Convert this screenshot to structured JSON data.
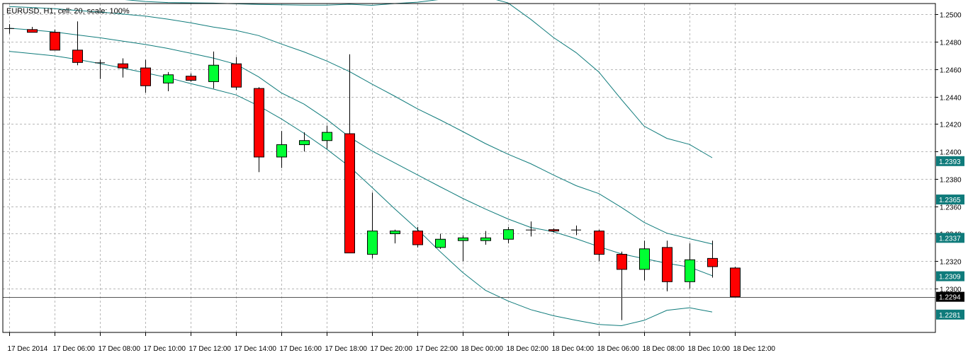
{
  "header": {
    "info": "EURUSD, H1, cell: 20, scale: 100%"
  },
  "colors": {
    "bull": "#00ff33",
    "bear": "#ff0000",
    "wick": "#000000",
    "band": "#0f7b7b",
    "grid": "#b8b8b8",
    "price_tag_bg": "#0f7b7b",
    "current_tag_bg": "#000000"
  },
  "chart_data": {
    "type": "candlestick",
    "symbol": "EURUSD",
    "timeframe": "H1",
    "ylim": [
      1.2268,
      1.2508
    ],
    "y_ticks": [
      "1.2500",
      "1.2480",
      "1.2460",
      "1.2440",
      "1.2420",
      "1.2400",
      "1.2380",
      "1.2360",
      "1.2340",
      "1.2320",
      "1.2300"
    ],
    "x_tick_labels": [
      "17 Dec 2014",
      "17 Dec 06:00",
      "17 Dec 08:00",
      "17 Dec 10:00",
      "17 Dec 12:00",
      "17 Dec 14:00",
      "17 Dec 16:00",
      "17 Dec 18:00",
      "17 Dec 20:00",
      "17 Dec 22:00",
      "18 Dec 00:00",
      "18 Dec 02:00",
      "18 Dec 04:00",
      "18 Dec 06:00",
      "18 Dec 08:00",
      "18 Dec 10:00",
      "18 Dec 12:00"
    ],
    "candles": [
      {
        "o": 1.249,
        "h": 1.2493,
        "l": 1.2486,
        "c": 1.249
      },
      {
        "o": 1.2489,
        "h": 1.2491,
        "l": 1.2487,
        "c": 1.2487
      },
      {
        "o": 1.2487,
        "h": 1.2489,
        "l": 1.2474,
        "c": 1.2474
      },
      {
        "o": 1.2474,
        "h": 1.2495,
        "l": 1.2463,
        "c": 1.2465
      },
      {
        "o": 1.2465,
        "h": 1.2467,
        "l": 1.2453,
        "c": 1.2465
      },
      {
        "o": 1.2464,
        "h": 1.2468,
        "l": 1.2454,
        "c": 1.2461
      },
      {
        "o": 1.2461,
        "h": 1.2467,
        "l": 1.2443,
        "c": 1.2448
      },
      {
        "o": 1.245,
        "h": 1.2458,
        "l": 1.2444,
        "c": 1.2456
      },
      {
        "o": 1.2455,
        "h": 1.2457,
        "l": 1.2451,
        "c": 1.2452
      },
      {
        "o": 1.2451,
        "h": 1.2473,
        "l": 1.2446,
        "c": 1.2463
      },
      {
        "o": 1.2464,
        "h": 1.2469,
        "l": 1.2445,
        "c": 1.2447
      },
      {
        "o": 1.2446,
        "h": 1.2447,
        "l": 1.2385,
        "c": 1.2396
      },
      {
        "o": 1.2396,
        "h": 1.2415,
        "l": 1.2388,
        "c": 1.2405
      },
      {
        "o": 1.2405,
        "h": 1.2414,
        "l": 1.24,
        "c": 1.2408
      },
      {
        "o": 1.2408,
        "h": 1.2419,
        "l": 1.2402,
        "c": 1.2414
      },
      {
        "o": 1.2413,
        "h": 1.2471,
        "l": 1.2326,
        "c": 1.2326
      },
      {
        "o": 1.2325,
        "h": 1.237,
        "l": 1.2322,
        "c": 1.2342
      },
      {
        "o": 1.234,
        "h": 1.2343,
        "l": 1.2333,
        "c": 1.2342
      },
      {
        "o": 1.2342,
        "h": 1.2345,
        "l": 1.233,
        "c": 1.2332
      },
      {
        "o": 1.233,
        "h": 1.234,
        "l": 1.2329,
        "c": 1.2336
      },
      {
        "o": 1.2335,
        "h": 1.2339,
        "l": 1.232,
        "c": 1.2337
      },
      {
        "o": 1.2335,
        "h": 1.2342,
        "l": 1.2332,
        "c": 1.2337
      },
      {
        "o": 1.2336,
        "h": 1.2345,
        "l": 1.2333,
        "c": 1.2343
      },
      {
        "o": 1.2343,
        "h": 1.2349,
        "l": 1.2338,
        "c": 1.2343
      },
      {
        "o": 1.2343,
        "h": 1.2344,
        "l": 1.2341,
        "c": 1.2342
      },
      {
        "o": 1.2343,
        "h": 1.2346,
        "l": 1.2339,
        "c": 1.2343
      },
      {
        "o": 1.2342,
        "h": 1.2343,
        "l": 1.232,
        "c": 1.2325
      },
      {
        "o": 1.2325,
        "h": 1.2327,
        "l": 1.2277,
        "c": 1.2314
      },
      {
        "o": 1.2314,
        "h": 1.2335,
        "l": 1.2306,
        "c": 1.2329
      },
      {
        "o": 1.233,
        "h": 1.2335,
        "l": 1.2298,
        "c": 1.2305
      },
      {
        "o": 1.2305,
        "h": 1.2333,
        "l": 1.23,
        "c": 1.2321
      },
      {
        "o": 1.2322,
        "h": 1.2335,
        "l": 1.2308,
        "c": 1.2316
      },
      {
        "o": 1.2315,
        "h": 1.2316,
        "l": 1.2294,
        "c": 1.2294
      }
    ],
    "bands": [
      {
        "name": "outer-upper",
        "values": [
          [
            0,
            1.25167
          ],
          [
            1,
            1.25159
          ],
          [
            2,
            1.2515
          ],
          [
            3,
            1.25135
          ],
          [
            4,
            1.25124
          ],
          [
            5,
            1.2511
          ],
          [
            6,
            1.25095
          ],
          [
            7,
            1.25087
          ],
          [
            8,
            1.25085
          ],
          [
            9,
            1.25083
          ],
          [
            10,
            1.25078
          ],
          [
            11,
            1.25074
          ],
          [
            12,
            1.25071
          ],
          [
            13,
            1.25068
          ],
          [
            14,
            1.25068
          ],
          [
            15,
            1.25075
          ],
          [
            16,
            1.25067
          ],
          [
            17,
            1.2508
          ],
          [
            18,
            1.2509
          ],
          [
            19,
            1.2511
          ],
          [
            20,
            1.2512
          ],
          [
            21,
            1.2513
          ],
          [
            22,
            1.25084
          ],
          [
            23,
            1.24965
          ],
          [
            24,
            1.24832
          ],
          [
            25,
            1.24722
          ],
          [
            26,
            1.24581
          ],
          [
            27,
            1.24379
          ],
          [
            28,
            1.24185
          ],
          [
            29,
            1.24096
          ],
          [
            30,
            1.24052
          ],
          [
            31,
            1.23955
          ]
        ]
      },
      {
        "name": "inner-upper",
        "values": [
          [
            0,
            1.25058
          ],
          [
            1,
            1.25051
          ],
          [
            2,
            1.25043
          ],
          [
            3,
            1.25029
          ],
          [
            4,
            1.25018
          ],
          [
            5,
            1.25003
          ],
          [
            6,
            1.24988
          ],
          [
            7,
            1.24966
          ],
          [
            8,
            1.24939
          ],
          [
            9,
            1.24908
          ],
          [
            10,
            1.24884
          ],
          [
            11,
            1.24846
          ],
          [
            12,
            1.24785
          ],
          [
            13,
            1.24727
          ],
          [
            14,
            1.24661
          ],
          [
            15,
            1.24584
          ],
          [
            16,
            1.24492
          ],
          [
            17,
            1.24404
          ],
          [
            18,
            1.24312
          ],
          [
            19,
            1.24231
          ],
          [
            20,
            1.24146
          ],
          [
            21,
            1.24058
          ],
          [
            22,
            1.2398
          ],
          [
            23,
            1.23911
          ],
          [
            24,
            1.23829
          ],
          [
            25,
            1.23751
          ],
          [
            26,
            1.23693
          ],
          [
            27,
            1.23592
          ],
          [
            28,
            1.23483
          ],
          [
            29,
            1.23404
          ],
          [
            30,
            1.23364
          ],
          [
            31,
            1.23325
          ]
        ]
      },
      {
        "name": "middle",
        "values": [
          [
            0,
            1.249
          ],
          [
            1,
            1.24887
          ],
          [
            2,
            1.24872
          ],
          [
            3,
            1.24851
          ],
          [
            4,
            1.2483
          ],
          [
            5,
            1.24806
          ],
          [
            6,
            1.24781
          ],
          [
            7,
            1.24752
          ],
          [
            8,
            1.24717
          ],
          [
            9,
            1.24682
          ],
          [
            10,
            1.24637
          ],
          [
            11,
            1.24545
          ],
          [
            12,
            1.24428
          ],
          [
            13,
            1.24346
          ],
          [
            14,
            1.24235
          ],
          [
            15,
            1.24106
          ],
          [
            16,
            1.24004
          ],
          [
            17,
            1.23917
          ],
          [
            18,
            1.2383
          ],
          [
            19,
            1.23743
          ],
          [
            20,
            1.23658
          ],
          [
            21,
            1.2358
          ],
          [
            22,
            1.23508
          ],
          [
            23,
            1.23446
          ],
          [
            24,
            1.23415
          ],
          [
            25,
            1.23364
          ],
          [
            26,
            1.23306
          ],
          [
            27,
            1.23253
          ],
          [
            28,
            1.23219
          ],
          [
            29,
            1.23184
          ],
          [
            30,
            1.23157
          ],
          [
            31,
            1.23094
          ]
        ]
      },
      {
        "name": "inner-lower",
        "values": [
          [
            0,
            1.24731
          ],
          [
            1,
            1.24715
          ],
          [
            2,
            1.24698
          ],
          [
            3,
            1.24672
          ],
          [
            4,
            1.24642
          ],
          [
            5,
            1.24609
          ],
          [
            6,
            1.24574
          ],
          [
            7,
            1.24539
          ],
          [
            8,
            1.24496
          ],
          [
            9,
            1.24456
          ],
          [
            10,
            1.24413
          ],
          [
            11,
            1.24333
          ],
          [
            12,
            1.24238
          ],
          [
            13,
            1.24133
          ],
          [
            14,
            1.24018
          ],
          [
            15,
            1.23891
          ],
          [
            16,
            1.23738
          ],
          [
            17,
            1.23582
          ],
          [
            18,
            1.23432
          ],
          [
            19,
            1.2327
          ],
          [
            20,
            1.23117
          ],
          [
            21,
            1.22987
          ],
          [
            22,
            1.22909
          ],
          [
            23,
            1.22846
          ],
          [
            24,
            1.22802
          ],
          [
            25,
            1.22768
          ],
          [
            26,
            1.22738
          ],
          [
            27,
            1.22729
          ],
          [
            28,
            1.22768
          ],
          [
            29,
            1.22841
          ],
          [
            30,
            1.2286
          ],
          [
            31,
            1.22829
          ]
        ]
      }
    ],
    "price_tags": [
      {
        "label": "1.2393",
        "value": 1.2393,
        "kind": "band"
      },
      {
        "label": "1.2365",
        "value": 1.2365,
        "kind": "band"
      },
      {
        "label": "1.2337",
        "value": 1.2337,
        "kind": "band"
      },
      {
        "label": "1.2309",
        "value": 1.2309,
        "kind": "band"
      },
      {
        "label": "1.2294",
        "value": 1.2294,
        "kind": "current"
      },
      {
        "label": "1.2281",
        "value": 1.2281,
        "kind": "band"
      }
    ],
    "current_price": 1.2294
  }
}
